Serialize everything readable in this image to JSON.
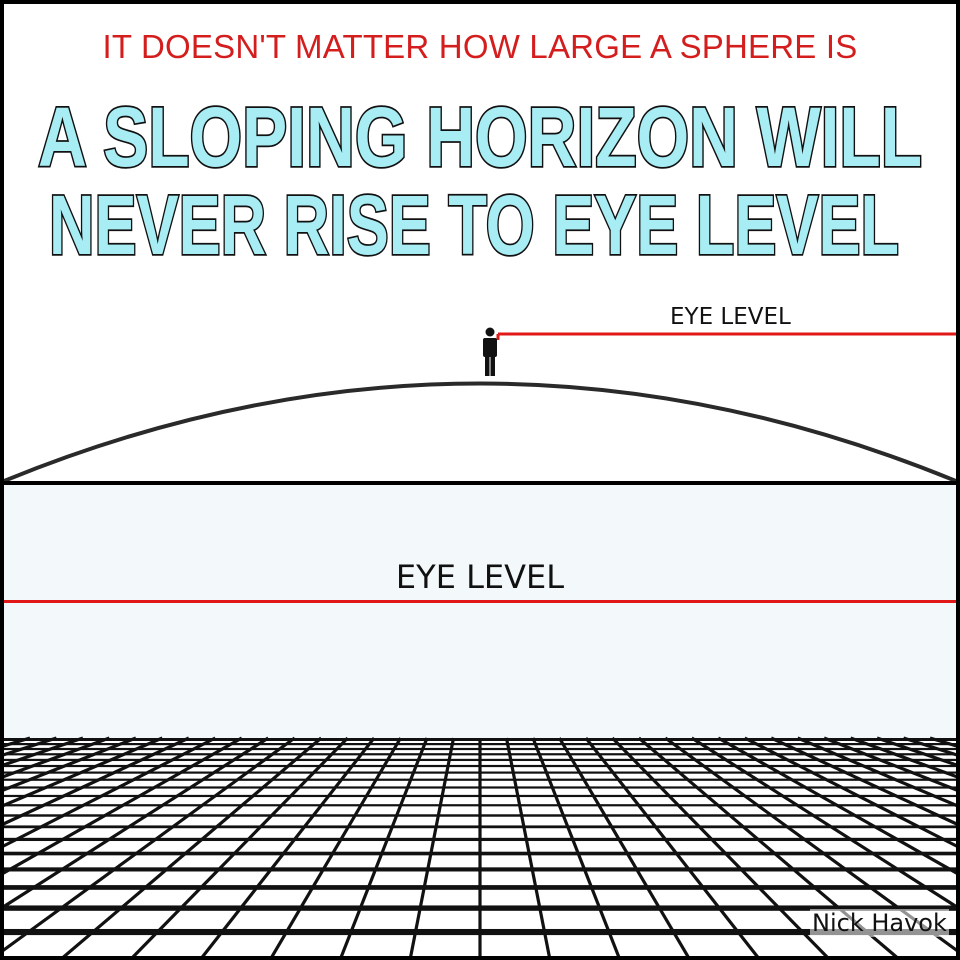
{
  "header": {
    "top_line": "IT DOESN'T MATTER HOW LARGE A SPHERE IS",
    "headline_line1": "A SLOPING HORIZON WILL",
    "headline_line2": "NEVER RISE TO EYE LEVEL"
  },
  "top_panel": {
    "eye_level_label": "EYE LEVEL"
  },
  "bottom_panel": {
    "eye_level_label": "EYE LEVEL"
  },
  "signature": "Nick Havok",
  "colors": {
    "headline_red": "#d41e1e",
    "headline_fill": "#a8ecf4",
    "eye_level_line": "#e01818",
    "outline": "#111111",
    "bottom_background": "#f3f9fa"
  },
  "icons": {
    "person": "standing-person-icon"
  }
}
